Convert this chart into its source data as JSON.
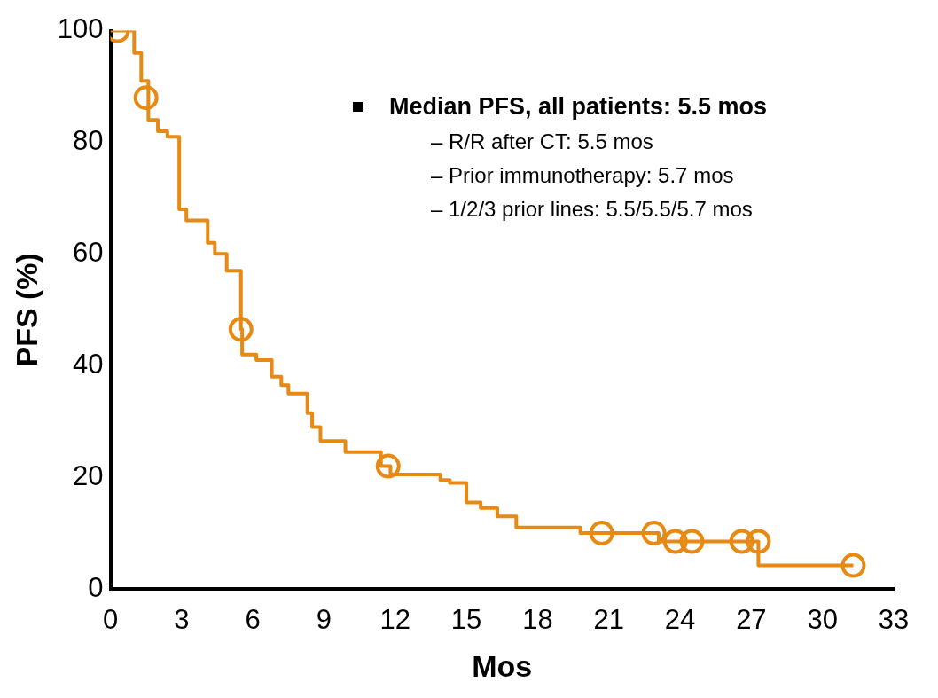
{
  "chart_data": {
    "type": "step",
    "xlabel": "Mos",
    "ylabel": "PFS (%)",
    "xlim": [
      0,
      33
    ],
    "xticks": [
      0,
      3,
      6,
      9,
      12,
      15,
      18,
      21,
      24,
      27,
      30,
      33
    ],
    "ylim": [
      0,
      100
    ],
    "yticks": [
      0,
      20,
      40,
      60,
      80,
      100
    ],
    "grid": false,
    "legend": false,
    "annotations": [
      "Median PFS, all patients: 5.5 mos",
      "– R/R after CT: 5.5 mos",
      "– Prior immunotherapy: 5.7 mos",
      "– 1/2/3 prior lines: 5.5/5.5/5.7 mos"
    ],
    "series": [
      {
        "type": "step",
        "color": "#e68a14",
        "marker": "none",
        "x": [
          0,
          1.0,
          1.3,
          1.6,
          2.0,
          2.4,
          2.9,
          3.2,
          4.1,
          4.4,
          4.9,
          5.5,
          5.55,
          6.15,
          6.8,
          7.2,
          7.5,
          8.3,
          8.5,
          8.85,
          9.9,
          11.4,
          11.8,
          13.9,
          14.3,
          15.0,
          15.6,
          16.3,
          17.1,
          19.8,
          23.1,
          27.3,
          31.3
        ],
        "values": [
          100,
          96,
          91,
          84,
          82,
          81,
          68,
          66,
          62,
          60,
          57,
          46.5,
          42,
          41,
          38,
          36.5,
          35,
          31.5,
          29,
          26.5,
          24.5,
          22,
          20.5,
          19.5,
          19,
          15.5,
          14.5,
          13,
          11,
          10,
          8.5,
          4.2,
          4.2
        ]
      },
      {
        "type": "scatter",
        "color": "#e68a14",
        "marker": "circle",
        "x": [
          0.3,
          1.5,
          5.5,
          11.7,
          20.7,
          22.9,
          23.8,
          24.5,
          26.6,
          27.3,
          31.3
        ],
        "values": [
          100,
          88,
          46.5,
          22,
          10,
          10,
          8.5,
          8.5,
          8.5,
          8.5,
          4.2
        ]
      }
    ]
  }
}
